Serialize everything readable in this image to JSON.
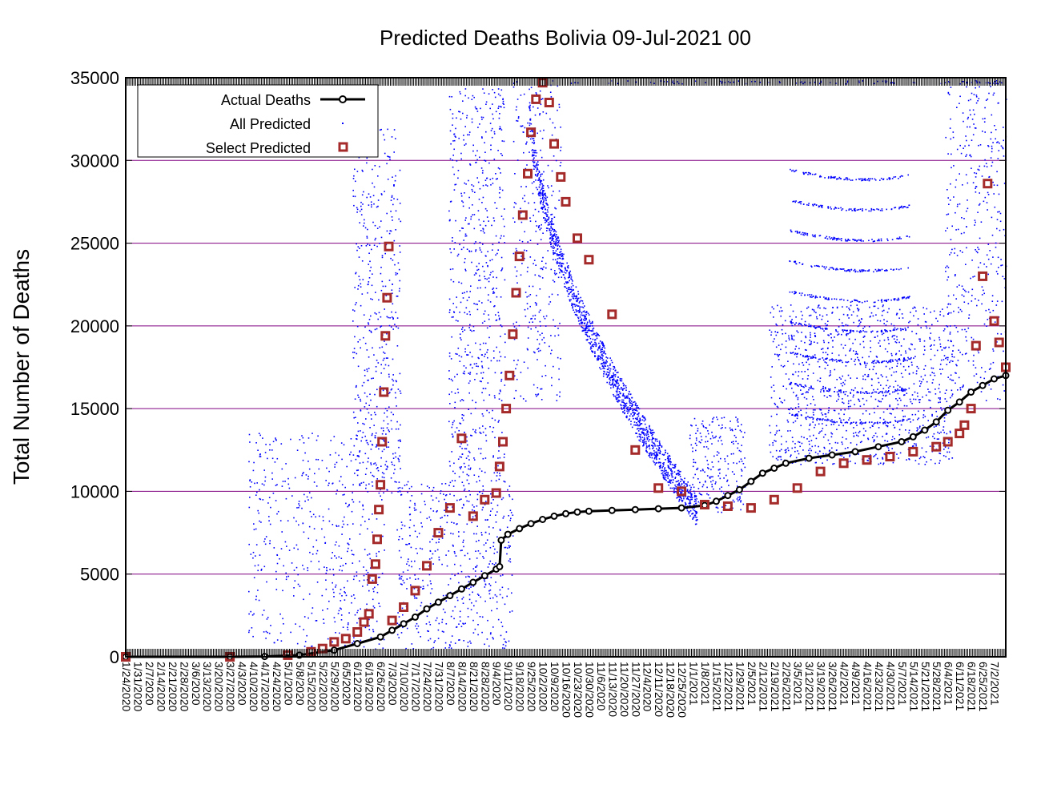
{
  "chart_data": {
    "type": "scatter",
    "title": "Predicted Deaths Bolivia 09-Jul-2021 00",
    "xlabel": "",
    "ylabel": "Total Number of Deaths",
    "ylim": [
      0,
      35000
    ],
    "yticks": [
      0,
      5000,
      10000,
      15000,
      20000,
      25000,
      30000,
      35000
    ],
    "xlim": [
      "1/24/2020",
      "7/9/2021"
    ],
    "xtick_labels": [
      "1/24/2020",
      "1/31/2020",
      "2/7/2020",
      "2/14/2020",
      "2/21/2020",
      "2/28/2020",
      "3/6/2020",
      "3/13/2020",
      "3/20/2020",
      "3/27/2020",
      "4/3/2020",
      "4/10/2020",
      "4/17/2020",
      "4/24/2020",
      "5/1/2020",
      "5/8/2020",
      "5/15/2020",
      "5/22/2020",
      "5/29/2020",
      "6/5/2020",
      "6/12/2020",
      "6/19/2020",
      "6/26/2020",
      "7/3/2020",
      "7/10/2020",
      "7/17/2020",
      "7/24/2020",
      "7/31/2020",
      "8/7/2020",
      "8/14/2020",
      "8/21/2020",
      "8/28/2020",
      "9/4/2020",
      "9/11/2020",
      "9/18/2020",
      "9/25/2020",
      "10/2/2020",
      "10/9/2020",
      "10/16/2020",
      "10/23/2020",
      "10/30/2020",
      "11/6/2020",
      "11/13/2020",
      "11/20/2020",
      "11/27/2020",
      "12/4/2020",
      "12/11/2020",
      "12/18/2020",
      "12/25/2020",
      "1/1/2021",
      "1/8/2021",
      "1/15/2021",
      "1/22/2021",
      "1/29/2021",
      "2/5/2021",
      "2/12/2021",
      "2/19/2021",
      "2/26/2021",
      "3/5/2021",
      "3/12/2021",
      "3/19/2021",
      "3/26/2021",
      "4/2/2021",
      "4/9/2021",
      "4/16/2021",
      "4/23/2021",
      "4/30/2021",
      "5/7/2021",
      "5/14/2021",
      "5/21/2021",
      "5/28/2021",
      "6/4/2021",
      "6/11/2021",
      "6/18/2021",
      "6/25/2021",
      "7/2/2021"
    ],
    "grid": "horizontal",
    "legend_position": "top-left",
    "legend": [
      {
        "label": "Actual Deaths",
        "style": "line-with-circles",
        "color": "#000000"
      },
      {
        "label": "All Predicted",
        "style": "dots",
        "color": "#0000ff"
      },
      {
        "label": "Select Predicted",
        "style": "open-squares",
        "color": "#a52a2a"
      }
    ],
    "series": [
      {
        "name": "Actual Deaths",
        "color": "#000000",
        "x": [
          "1/24/2020",
          "3/27/2020",
          "4/17/2020",
          "5/8/2020",
          "5/29/2020",
          "6/12/2020",
          "6/26/2020",
          "7/3/2020",
          "7/10/2020",
          "7/17/2020",
          "7/24/2020",
          "7/31/2020",
          "8/7/2020",
          "8/14/2020",
          "8/21/2020",
          "8/28/2020",
          "9/4/2020",
          "9/6/2020",
          "9/7/2020",
          "9/11/2020",
          "9/18/2020",
          "9/25/2020",
          "10/2/2020",
          "10/9/2020",
          "10/16/2020",
          "10/23/2020",
          "10/30/2020",
          "11/13/2020",
          "11/27/2020",
          "12/11/2020",
          "12/25/2020",
          "1/8/2021",
          "1/15/2021",
          "1/22/2021",
          "1/29/2021",
          "2/5/2021",
          "2/12/2021",
          "2/19/2021",
          "2/26/2021",
          "3/12/2021",
          "3/26/2021",
          "4/9/2021",
          "4/23/2021",
          "5/7/2021",
          "5/14/2021",
          "5/21/2021",
          "5/28/2021",
          "6/4/2021",
          "6/11/2021",
          "6/18/2021",
          "6/25/2021",
          "7/2/2021",
          "7/9/2021"
        ],
        "values": [
          0,
          0,
          20,
          100,
          400,
          800,
          1200,
          1600,
          2000,
          2400,
          2900,
          3300,
          3700,
          4100,
          4500,
          4900,
          5300,
          5450,
          7050,
          7400,
          7750,
          8050,
          8300,
          8500,
          8650,
          8750,
          8800,
          8850,
          8900,
          8950,
          9000,
          9150,
          9400,
          9750,
          10100,
          10600,
          11100,
          11400,
          11700,
          12000,
          12200,
          12400,
          12700,
          13000,
          13300,
          13700,
          14200,
          14900,
          15400,
          16000,
          16400,
          16800,
          17000
        ]
      },
      {
        "name": "Select Predicted",
        "color": "#a52a2a",
        "x": [
          "1/24/2020",
          "3/27/2020",
          "5/1/2020",
          "5/15/2020",
          "5/22/2020",
          "5/29/2020",
          "6/5/2020",
          "6/12/2020",
          "6/16/2020",
          "6/19/2020",
          "6/21/2020",
          "6/23/2020",
          "6/24/2020",
          "6/25/2020",
          "6/26/2020",
          "6/27/2020",
          "6/28/2020",
          "6/29/2020",
          "6/30/2020",
          "7/1/2020",
          "7/3/2020",
          "7/10/2020",
          "7/17/2020",
          "7/24/2020",
          "7/31/2020",
          "8/7/2020",
          "8/14/2020",
          "8/21/2020",
          "8/28/2020",
          "9/4/2020",
          "9/6/2020",
          "9/8/2020",
          "9/10/2020",
          "9/12/2020",
          "9/14/2020",
          "9/16/2020",
          "9/18/2020",
          "9/20/2020",
          "9/23/2020",
          "9/25/2020",
          "9/28/2020",
          "10/2/2020",
          "10/6/2020",
          "10/9/2020",
          "10/13/2020",
          "10/16/2020",
          "10/23/2020",
          "10/30/2020",
          "11/13/2020",
          "11/27/2020",
          "12/11/2020",
          "12/25/2020",
          "1/8/2021",
          "1/22/2021",
          "2/5/2021",
          "2/19/2021",
          "3/5/2021",
          "3/19/2021",
          "4/2/2021",
          "4/16/2021",
          "4/30/2021",
          "5/14/2021",
          "5/28/2021",
          "6/4/2021",
          "6/11/2021",
          "6/14/2021",
          "6/18/2021",
          "6/21/2021",
          "6/25/2021",
          "6/28/2021",
          "7/2/2021",
          "7/5/2021",
          "7/9/2021"
        ],
        "values": [
          0,
          0,
          100,
          300,
          500,
          900,
          1100,
          1500,
          2100,
          2600,
          4700,
          5600,
          7100,
          8900,
          10400,
          13000,
          16000,
          19400,
          21700,
          24800,
          2200,
          3000,
          4000,
          5500,
          7500,
          9000,
          13200,
          8500,
          9500,
          9900,
          11500,
          13000,
          15000,
          17000,
          19500,
          22000,
          24200,
          26700,
          29200,
          31700,
          33700,
          34700,
          33500,
          31000,
          29000,
          27500,
          25300,
          24000,
          20700,
          12500,
          10200,
          10000,
          9200,
          9100,
          9000,
          9500,
          10200,
          11200,
          11700,
          11900,
          12100,
          12400,
          12700,
          13000,
          13500,
          14000,
          15000,
          18800,
          23000,
          28600,
          20300,
          19000,
          17500
        ]
      }
    ]
  }
}
